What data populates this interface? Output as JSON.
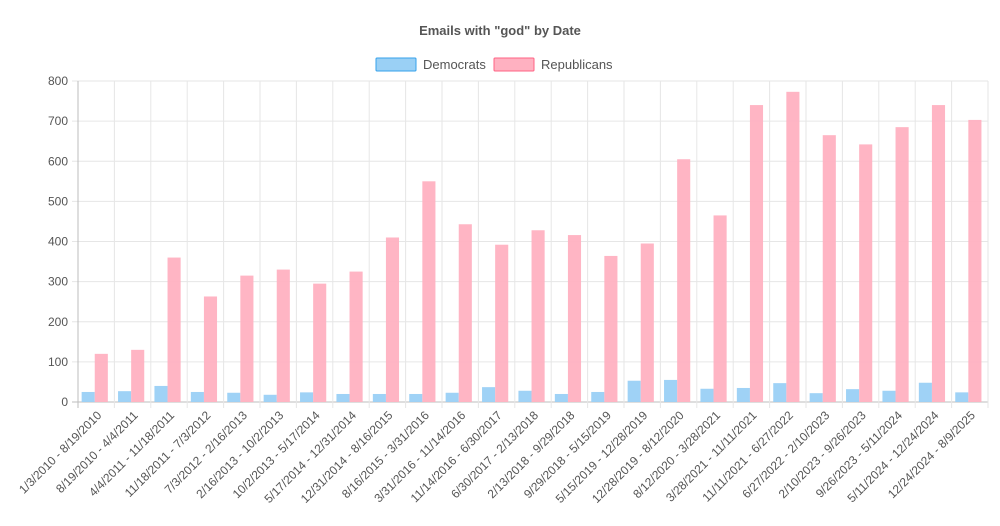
{
  "chart_data": {
    "type": "bar",
    "title": "Emails with \"god\" by Date",
    "xlabel": "",
    "ylabel": "",
    "ylim": [
      0,
      800
    ],
    "yticks": [
      0,
      100,
      200,
      300,
      400,
      500,
      600,
      700,
      800
    ],
    "legend_position": "top",
    "grid": true,
    "categories": [
      "1/3/2010 - 8/19/2010",
      "8/19/2010 - 4/4/2011",
      "4/4/2011 - 11/18/2011",
      "11/18/2011 - 7/3/2012",
      "7/3/2012 - 2/16/2013",
      "2/16/2013 - 10/2/2013",
      "10/2/2013 - 5/17/2014",
      "5/17/2014 - 12/31/2014",
      "12/31/2014 - 8/16/2015",
      "8/16/2015 - 3/31/2016",
      "3/31/2016 - 11/14/2016",
      "11/14/2016 - 6/30/2017",
      "6/30/2017 - 2/13/2018",
      "2/13/2018 - 9/29/2018",
      "9/29/2018 - 5/15/2019",
      "5/15/2019 - 12/28/2019",
      "12/28/2019 - 8/12/2020",
      "8/12/2020 - 3/28/2021",
      "3/28/2021 - 11/11/2021",
      "11/11/2021 - 6/27/2022",
      "6/27/2022 - 2/10/2023",
      "2/10/2023 - 9/26/2023",
      "9/26/2023 - 5/11/2024",
      "5/11/2024 - 12/24/2024",
      "12/24/2024 - 8/9/2025"
    ],
    "series": [
      {
        "name": "Democrats",
        "color": "#9ad0f5",
        "values": [
          25,
          27,
          40,
          25,
          23,
          18,
          24,
          20,
          20,
          20,
          23,
          37,
          28,
          20,
          25,
          53,
          55,
          33,
          35,
          47,
          22,
          32,
          28,
          48,
          24
        ]
      },
      {
        "name": "Republicans",
        "color": "#ffb1c1",
        "values": [
          120,
          130,
          360,
          263,
          315,
          330,
          295,
          325,
          410,
          550,
          443,
          392,
          428,
          416,
          364,
          395,
          605,
          465,
          740,
          773,
          665,
          642,
          685,
          740,
          703
        ]
      }
    ]
  }
}
